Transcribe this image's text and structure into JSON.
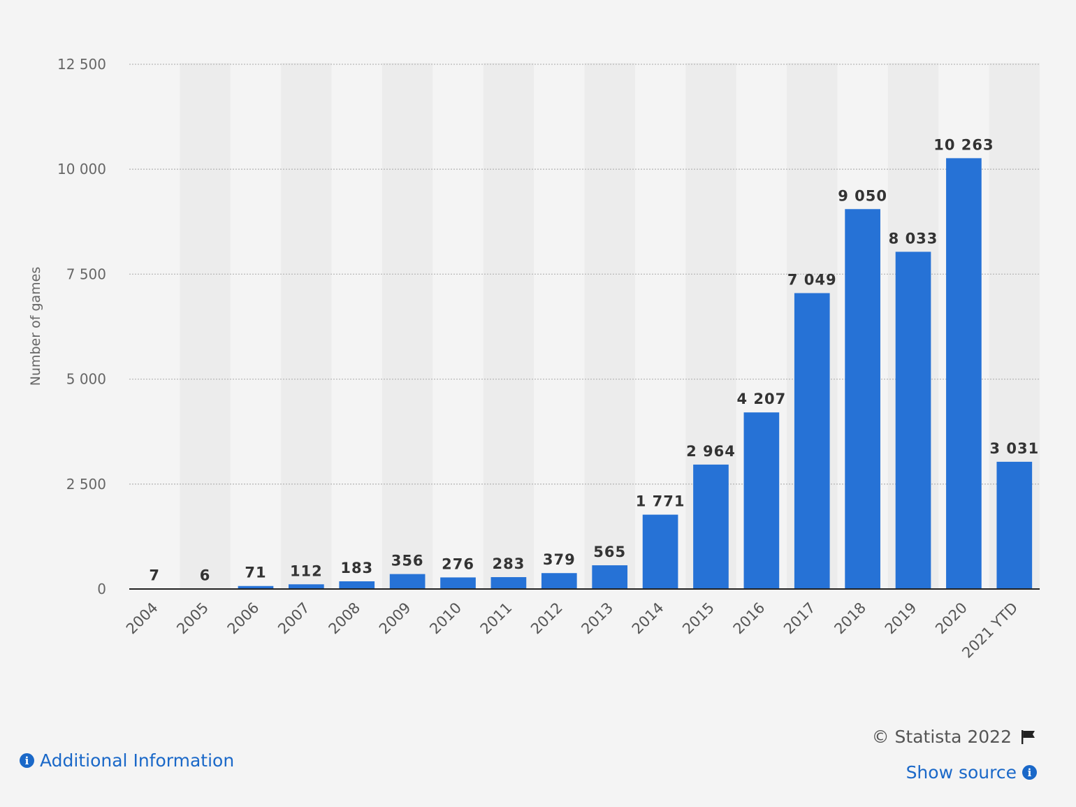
{
  "chart_data": {
    "type": "bar",
    "categories": [
      "2004",
      "2005",
      "2006",
      "2007",
      "2008",
      "2009",
      "2010",
      "2011",
      "2012",
      "2013",
      "2014",
      "2015",
      "2016",
      "2017",
      "2018",
      "2019",
      "2020",
      "2021 YTD"
    ],
    "values": [
      7,
      6,
      71,
      112,
      183,
      356,
      276,
      283,
      379,
      565,
      1771,
      2964,
      4207,
      7049,
      9050,
      8033,
      10263,
      3031
    ],
    "value_labels": [
      "7",
      "6",
      "71",
      "112",
      "183",
      "356",
      "276",
      "283",
      "379",
      "565",
      "1 771",
      "2 964",
      "4 207",
      "7 049",
      "9 050",
      "8 033",
      "10 263",
      "3 031"
    ],
    "ylabel": "Number of games",
    "xlabel": "",
    "title": "",
    "ylim": [
      0,
      12500
    ],
    "yticks": [
      0,
      2500,
      5000,
      7500,
      10000,
      12500
    ],
    "ytick_labels": [
      "0",
      "2 500",
      "5 000",
      "7 500",
      "10 000",
      "12 500"
    ],
    "grid": true,
    "legend": "none",
    "bar_color": "#2672d6"
  },
  "footer": {
    "additional_info": "Additional Information",
    "copyright": "© Statista 2022",
    "show_source": "Show source",
    "info_icon": "info-circle-icon",
    "flag_icon": "flag-icon"
  }
}
